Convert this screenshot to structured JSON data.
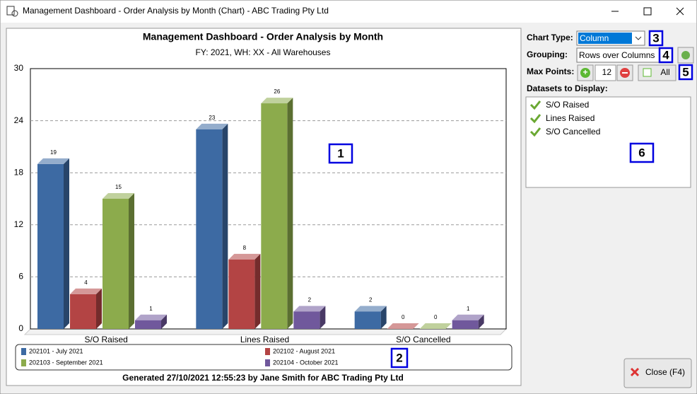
{
  "window": {
    "title": "Management Dashboard - Order Analysis by Month (Chart) - ABC Trading Pty Ltd"
  },
  "chart_data": {
    "type": "bar",
    "title": "Management Dashboard - Order Analysis by Month",
    "subtitle": "FY: 2021, WH: XX - All Warehouses",
    "categories": [
      "S/O Raised",
      "Lines Raised",
      "S/O Cancelled"
    ],
    "series": [
      {
        "name": "202101 - July 2021",
        "color": "#3d6aa3",
        "values": [
          19,
          23,
          2
        ]
      },
      {
        "name": "202102 - August 2021",
        "color": "#b34444",
        "values": [
          4,
          8,
          0
        ]
      },
      {
        "name": "202103 - September 2021",
        "color": "#8cab4c",
        "values": [
          15,
          26,
          0
        ]
      },
      {
        "name": "202104 - October 2021",
        "color": "#70589c",
        "values": [
          1,
          2,
          1
        ]
      }
    ],
    "ylim": [
      0,
      30
    ],
    "yticks": [
      0,
      6,
      12,
      18,
      24,
      30
    ],
    "grid": true,
    "footer": "Generated 27/10/2021 12:55:23 by Jane Smith for ABC Trading Pty Ltd"
  },
  "controls": {
    "chart_type_label": "Chart Type:",
    "chart_type": "Column",
    "grouping_label": "Grouping:",
    "grouping": "Rows over Columns",
    "max_points_label": "Max Points:",
    "max_points": 12,
    "max_points_all": "All",
    "datasets_label": "Datasets to Display:",
    "datasets": [
      "S/O Raised",
      "Lines Raised",
      "S/O Cancelled"
    ],
    "close_button": "Close (F4)"
  },
  "callouts": [
    1,
    2,
    3,
    4,
    5,
    6
  ]
}
